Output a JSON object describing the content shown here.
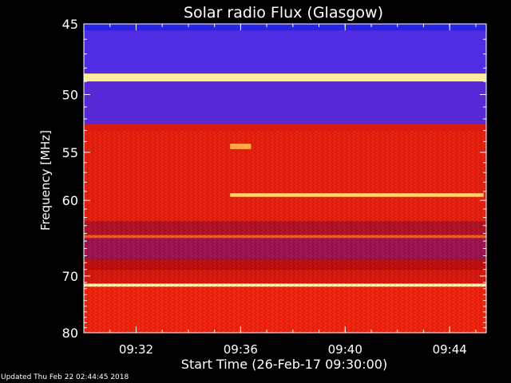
{
  "chart_data": {
    "type": "heatmap",
    "title": "Solar radio Flux (Glasgow)",
    "xlabel": "Start Time (26-Feb-17 09:30:00)",
    "ylabel": "Frequency [MHz]",
    "x_unit": "minutes after 09:30",
    "xlim": [
      0,
      15.4
    ],
    "ylim": [
      45,
      80
    ],
    "x_ticks": [
      {
        "label": "09:32",
        "value": 2
      },
      {
        "label": "09:36",
        "value": 6
      },
      {
        "label": "09:40",
        "value": 10
      },
      {
        "label": "09:44",
        "value": 14
      }
    ],
    "y_ticks": [
      45,
      50,
      55,
      60,
      70,
      80
    ],
    "y_scale": "reciprocal (frequency increases downward)",
    "colormap": [
      "#000000",
      "#1818d0",
      "#3a36ff",
      "#7020b8",
      "#c01010",
      "#ff2a10",
      "#ff7a20",
      "#ffd060",
      "#ffffc0"
    ],
    "frequency_bands": [
      {
        "from": 45.0,
        "to": 45.4,
        "intensity": 0.18
      },
      {
        "from": 45.4,
        "to": 48.4,
        "intensity": 0.3
      },
      {
        "from": 48.4,
        "to": 49.0,
        "intensity": 0.95
      },
      {
        "from": 49.0,
        "to": 52.4,
        "intensity": 0.32
      },
      {
        "from": 52.4,
        "to": 53.0,
        "intensity": 0.55
      },
      {
        "from": 53.0,
        "to": 62.5,
        "intensity": 0.58
      },
      {
        "from": 62.5,
        "to": 64.2,
        "intensity": 0.48
      },
      {
        "from": 64.2,
        "to": 64.6,
        "intensity": 0.7
      },
      {
        "from": 64.6,
        "to": 67.5,
        "intensity": 0.45
      },
      {
        "from": 67.5,
        "to": 69.0,
        "intensity": 0.5
      },
      {
        "from": 69.0,
        "to": 71.2,
        "intensity": 0.55
      },
      {
        "from": 71.2,
        "to": 71.7,
        "intensity": 0.98
      },
      {
        "from": 71.7,
        "to": 80.0,
        "intensity": 0.6
      }
    ],
    "bursts": [
      {
        "from_time": 5.6,
        "to_time": 15.3,
        "freq_from": 59.2,
        "freq_to": 59.6,
        "intensity": 0.88
      },
      {
        "from_time": 5.6,
        "to_time": 6.4,
        "freq_from": 54.2,
        "freq_to": 54.7,
        "intensity": 0.82
      }
    ]
  },
  "footer": {
    "updated": "Updated Thu Feb 22 02:44:45 2018"
  }
}
